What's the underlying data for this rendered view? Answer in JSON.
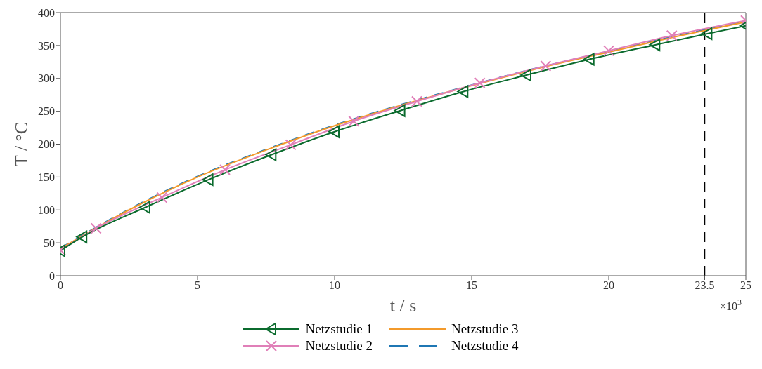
{
  "chart_data": {
    "type": "line",
    "xlabel": "t / s",
    "ylabel": "T / °C",
    "xlim": [
      0,
      25
    ],
    "xticks": [
      0,
      5,
      10,
      15,
      20,
      23.5,
      25
    ],
    "ylim": [
      0,
      400
    ],
    "yticks": [
      0,
      50,
      100,
      150,
      200,
      250,
      300,
      350,
      400
    ],
    "legend": "bottom",
    "annotations": [
      "×10$^{3}$"
    ],
    "ref_lines": [
      {
        "axis": "x",
        "value": 23.5,
        "color": "#000000",
        "line_style": "dashed"
      }
    ],
    "series": [
      {
        "name": "Netzstudie 1",
        "color": "#0b6b2e",
        "marker": "triangle",
        "line_style": "solid",
        "x": [
          0,
          0.8,
          3.1,
          5.4,
          7.7,
          10.0,
          12.4,
          14.7,
          17.0,
          19.3,
          21.7,
          23.6,
          25
        ],
        "values": [
          38,
          59,
          104,
          146,
          184,
          219,
          251,
          280,
          305,
          329,
          351,
          368,
          380
        ]
      },
      {
        "name": "Netzstudie 2",
        "color": "#e07fb8",
        "marker": "cross",
        "line_style": "solid",
        "x": [
          0,
          1.3,
          3.7,
          6.0,
          8.4,
          10.7,
          13.0,
          15.3,
          17.7,
          20.0,
          22.3,
          25
        ],
        "values": [
          39,
          72,
          119,
          161,
          199,
          235,
          265,
          293,
          319,
          342,
          365,
          388
        ]
      },
      {
        "name": "Netzstudie 3",
        "color": "#f39a2b",
        "marker": "none",
        "line_style": "solid",
        "x": [
          0,
          2.5,
          5,
          7.5,
          10,
          12.5,
          15,
          17.5,
          20,
          22.5,
          25
        ],
        "values": [
          41,
          100,
          150,
          191,
          228,
          260,
          289,
          316,
          340,
          364,
          386
        ]
      },
      {
        "name": "Netzstudie 4",
        "color": "#1f77b4",
        "marker": "none",
        "line_style": "dashed",
        "x": [
          0,
          2.5,
          5,
          7.5,
          10,
          12.5,
          15,
          17.5,
          20,
          22.5,
          25
        ],
        "values": [
          42,
          101,
          151,
          192,
          229,
          261,
          290,
          317,
          341,
          365,
          387
        ]
      }
    ]
  }
}
